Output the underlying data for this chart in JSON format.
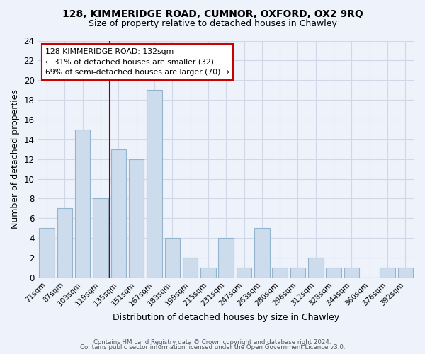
{
  "title1": "128, KIMMERIDGE ROAD, CUMNOR, OXFORD, OX2 9RQ",
  "title2": "Size of property relative to detached houses in Chawley",
  "xlabel": "Distribution of detached houses by size in Chawley",
  "ylabel": "Number of detached properties",
  "categories": [
    "71sqm",
    "87sqm",
    "103sqm",
    "119sqm",
    "135sqm",
    "151sqm",
    "167sqm",
    "183sqm",
    "199sqm",
    "215sqm",
    "231sqm",
    "247sqm",
    "263sqm",
    "280sqm",
    "296sqm",
    "312sqm",
    "328sqm",
    "344sqm",
    "360sqm",
    "376sqm",
    "392sqm"
  ],
  "values": [
    5,
    7,
    15,
    8,
    13,
    12,
    19,
    4,
    2,
    1,
    4,
    1,
    5,
    1,
    1,
    2,
    1,
    1,
    0,
    1,
    1
  ],
  "bar_color": "#ccdcec",
  "bar_edge_color": "#93b4cc",
  "grid_color": "#d0d8e8",
  "bg_color": "#eef2fb",
  "vline_x": 3.5,
  "vline_color": "#8b0000",
  "annotation_text": "128 KIMMERIDGE ROAD: 132sqm\n← 31% of detached houses are smaller (32)\n69% of semi-detached houses are larger (70) →",
  "annotation_box_color": "white",
  "annotation_box_edge": "#cc0000",
  "ylim": [
    0,
    24
  ],
  "yticks": [
    0,
    2,
    4,
    6,
    8,
    10,
    12,
    14,
    16,
    18,
    20,
    22,
    24
  ],
  "footer1": "Contains HM Land Registry data © Crown copyright and database right 2024.",
  "footer2": "Contains public sector information licensed under the Open Government Licence v3.0."
}
